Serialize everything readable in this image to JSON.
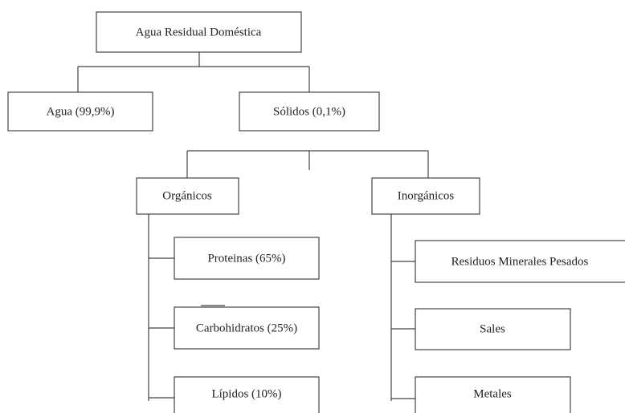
{
  "nodes": [
    {
      "label": "Agua Residual Doméstica"
    },
    {
      "label": "Agua (99,9%)"
    },
    {
      "label": "Sólidos (0,1%)"
    },
    {
      "label": "Orgánicos"
    },
    {
      "label": "Inorgánicos"
    },
    {
      "label": "Proteinas (65%)"
    },
    {
      "label": "Carbohidratos (25%)"
    },
    {
      "label": "Lípidos (10%)"
    },
    {
      "label": "Residuos Minerales Pesados"
    },
    {
      "label": "Sales"
    },
    {
      "label": "Metales"
    }
  ]
}
